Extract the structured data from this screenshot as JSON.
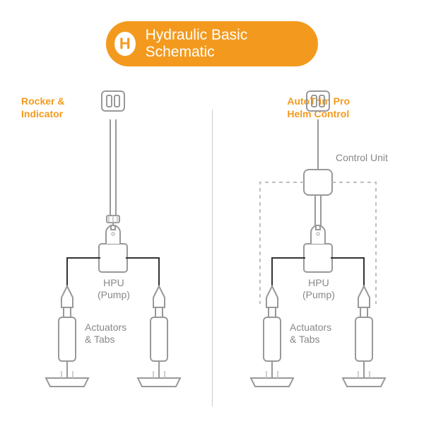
{
  "header": {
    "letter": "H",
    "title": "Hydraulic Basic Schematic",
    "pill_bg": "#f39a1e",
    "pill_text_color": "#ffffff",
    "title_fontsize": 21,
    "letter_color": "#f39a1e",
    "letter_fontsize": 22
  },
  "colors": {
    "stroke": "#999999",
    "stroke_light": "#bfbfbf",
    "label": "#888888",
    "accent": "#f39a1e",
    "divider": "#cccccc",
    "background": "#ffffff"
  },
  "stroke_width": 2,
  "label_fontsize": 14,
  "side_label_fontsize": 14,
  "left": {
    "side_label_line1": "Rocker &",
    "side_label_line2": "Indicator",
    "hpu_line1": "HPU",
    "hpu_line2": "(Pump)",
    "act_line1": "Actuators",
    "act_line2": "& Tabs"
  },
  "right": {
    "side_label_line1": "AutoTrim Pro",
    "side_label_line2": "Helm Control",
    "control_unit": "Control Unit",
    "hpu_line1": "HPU",
    "hpu_line2": "(Pump)",
    "act_line1": "Actuators",
    "act_line2": "& Tabs"
  }
}
